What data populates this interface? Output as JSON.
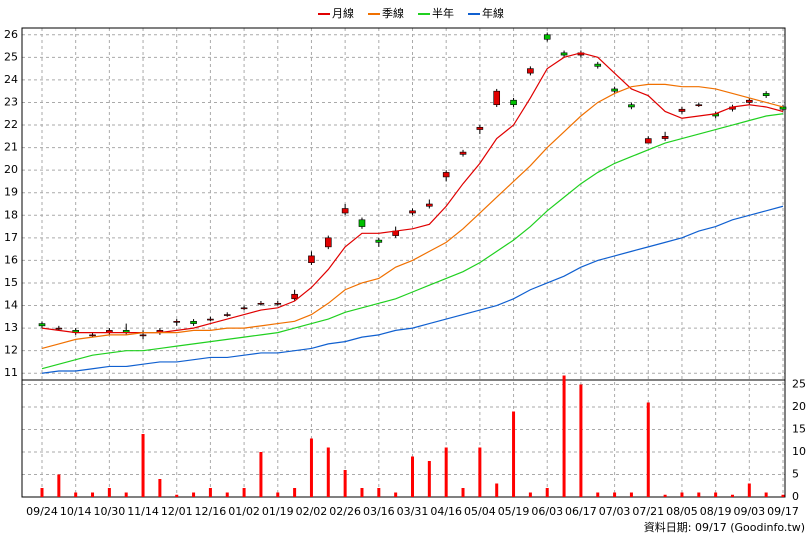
{
  "chart_data": {
    "type": "candlestick",
    "categories": [
      "09/24",
      null,
      "10/14",
      null,
      "10/30",
      null,
      "11/14",
      null,
      "12/01",
      null,
      "12/16",
      null,
      "01/02",
      null,
      "01/19",
      null,
      "02/02",
      null,
      "02/26",
      null,
      "03/16",
      null,
      "03/31",
      null,
      "04/16",
      null,
      "05/04",
      null,
      "05/19",
      null,
      "06/03",
      null,
      "06/17",
      null,
      "07/03",
      null,
      "07/21",
      null,
      "08/05",
      null,
      "08/19",
      null,
      "09/03",
      null,
      "09/17"
    ],
    "open": [
      13.2,
      13.0,
      12.9,
      12.7,
      12.8,
      12.9,
      12.7,
      12.8,
      13.3,
      13.3,
      13.4,
      13.6,
      13.9,
      14.1,
      14.1,
      14.3,
      15.9,
      16.6,
      18.1,
      17.8,
      16.9,
      17.1,
      18.1,
      18.4,
      19.7,
      20.7,
      21.8,
      22.9,
      23.1,
      24.3,
      26.0,
      25.2,
      25.1,
      24.7,
      23.6,
      22.9,
      21.2,
      21.4,
      22.6,
      22.9,
      22.5,
      22.7,
      23.0,
      23.4,
      22.8
    ],
    "high": [
      13.3,
      13.1,
      13.0,
      12.8,
      13.0,
      13.2,
      12.9,
      13.0,
      13.4,
      13.4,
      13.5,
      13.7,
      14.0,
      14.2,
      14.2,
      14.7,
      16.4,
      17.1,
      18.5,
      17.9,
      17.0,
      17.5,
      18.3,
      18.7,
      20.0,
      20.9,
      22.0,
      23.6,
      23.2,
      24.6,
      26.1,
      25.3,
      25.3,
      24.8,
      23.7,
      23.0,
      21.5,
      21.7,
      22.8,
      23.0,
      22.6,
      22.9,
      23.2,
      23.5,
      22.9
    ],
    "low": [
      13.0,
      12.9,
      12.7,
      12.6,
      12.7,
      12.7,
      12.5,
      12.7,
      13.1,
      13.1,
      13.3,
      13.5,
      13.8,
      14.0,
      14.0,
      14.2,
      15.8,
      16.5,
      18.0,
      17.4,
      16.6,
      17.0,
      18.0,
      18.3,
      19.5,
      20.6,
      21.6,
      22.8,
      22.8,
      24.2,
      25.7,
      25.0,
      25.0,
      24.5,
      23.4,
      22.7,
      21.2,
      21.3,
      22.5,
      22.8,
      22.3,
      22.6,
      22.9,
      23.2,
      22.6
    ],
    "close": [
      13.1,
      13.0,
      12.8,
      12.7,
      12.9,
      12.8,
      12.7,
      12.9,
      13.3,
      13.2,
      13.4,
      13.6,
      13.9,
      14.1,
      14.1,
      14.5,
      16.2,
      17.0,
      18.3,
      17.5,
      16.8,
      17.3,
      18.2,
      18.5,
      19.9,
      20.8,
      21.9,
      23.5,
      22.9,
      24.5,
      25.8,
      25.1,
      25.2,
      24.6,
      23.5,
      22.8,
      21.4,
      21.5,
      22.7,
      22.9,
      22.4,
      22.8,
      23.1,
      23.3,
      22.7
    ],
    "up_color": "#e00000",
    "down_color": "#00c000",
    "series": [
      {
        "name": "月線",
        "color": "#e00000",
        "values": [
          13.0,
          12.9,
          12.8,
          12.8,
          12.8,
          12.8,
          12.8,
          12.8,
          12.9,
          13.0,
          13.2,
          13.4,
          13.6,
          13.8,
          13.9,
          14.2,
          14.8,
          15.6,
          16.6,
          17.2,
          17.2,
          17.3,
          17.4,
          17.6,
          18.4,
          19.4,
          20.3,
          21.4,
          22.0,
          23.2,
          24.5,
          25.0,
          25.2,
          25.0,
          24.3,
          23.6,
          23.3,
          22.6,
          22.3,
          22.4,
          22.5,
          22.8,
          22.9,
          22.8,
          22.6
        ]
      },
      {
        "name": "季線",
        "color": "#f07000",
        "values": [
          12.1,
          12.3,
          12.5,
          12.6,
          12.7,
          12.7,
          12.8,
          12.8,
          12.8,
          12.9,
          12.9,
          13.0,
          13.0,
          13.1,
          13.2,
          13.3,
          13.6,
          14.1,
          14.7,
          15.0,
          15.2,
          15.7,
          16.0,
          16.4,
          16.8,
          17.4,
          18.1,
          18.8,
          19.5,
          20.2,
          21.0,
          21.7,
          22.4,
          23.0,
          23.4,
          23.7,
          23.8,
          23.8,
          23.7,
          23.7,
          23.6,
          23.4,
          23.2,
          23.0,
          22.8
        ]
      },
      {
        "name": "半年",
        "color": "#20d020",
        "values": [
          11.2,
          11.4,
          11.6,
          11.8,
          11.9,
          12.0,
          12.0,
          12.1,
          12.2,
          12.3,
          12.4,
          12.5,
          12.6,
          12.7,
          12.8,
          13.0,
          13.2,
          13.4,
          13.7,
          13.9,
          14.1,
          14.3,
          14.6,
          14.9,
          15.2,
          15.5,
          15.9,
          16.4,
          16.9,
          17.5,
          18.2,
          18.8,
          19.4,
          19.9,
          20.3,
          20.6,
          20.9,
          21.2,
          21.4,
          21.6,
          21.8,
          22.0,
          22.2,
          22.4,
          22.5
        ]
      },
      {
        "name": "年線",
        "color": "#1060d0",
        "values": [
          11.0,
          11.1,
          11.1,
          11.2,
          11.3,
          11.3,
          11.4,
          11.5,
          11.5,
          11.6,
          11.7,
          11.7,
          11.8,
          11.9,
          11.9,
          12.0,
          12.1,
          12.3,
          12.4,
          12.6,
          12.7,
          12.9,
          13.0,
          13.2,
          13.4,
          13.6,
          13.8,
          14.0,
          14.3,
          14.7,
          15.0,
          15.3,
          15.7,
          16.0,
          16.2,
          16.4,
          16.6,
          16.8,
          17.0,
          17.3,
          17.5,
          17.8,
          18.0,
          18.2,
          18.4
        ]
      }
    ],
    "volume": {
      "color": "#ff0000",
      "values": [
        2,
        5,
        1,
        1,
        2,
        1,
        14,
        4,
        0.5,
        1,
        2,
        1,
        2,
        10,
        1,
        2,
        13,
        11,
        6,
        2,
        2,
        1,
        9,
        8,
        11,
        2,
        11,
        3,
        19,
        1,
        2,
        27,
        25,
        1,
        1,
        1,
        21,
        0.5,
        1,
        1,
        1,
        0.5,
        3,
        1,
        0.5
      ]
    },
    "ylim": [
      10.7,
      26.3
    ],
    "yticks": [
      11,
      12,
      13,
      14,
      15,
      16,
      17,
      18,
      19,
      20,
      21,
      22,
      23,
      24,
      25,
      26
    ],
    "y2lim": [
      0,
      26
    ],
    "y2ticks": [
      0,
      5,
      10,
      15,
      20,
      25
    ],
    "grid": true,
    "footer": "資料日期: 09/17 (Goodinfo.tw)"
  }
}
